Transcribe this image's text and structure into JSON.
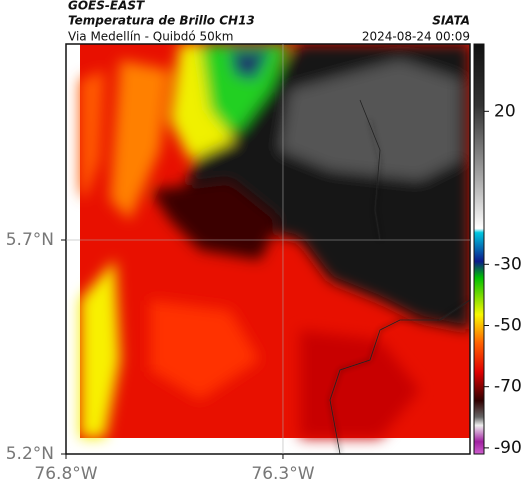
{
  "header": {
    "satellite": "GOES-EAST",
    "product": "Temperatura de Brillo CH13",
    "route": "Via Medellín - Quibdó 50km",
    "source": "SIATA",
    "timestamp": "2024-08-24 00:09"
  },
  "map": {
    "xlim": [
      -76.8,
      -75.869
    ],
    "ylim": [
      5.2,
      6.158
    ],
    "xticks": [
      {
        "value": -76.8,
        "label": "76.8°W"
      },
      {
        "value": -76.3,
        "label": "76.3°W"
      }
    ],
    "yticks": [
      {
        "value": 5.7,
        "label": "5.7°N"
      },
      {
        "value": 5.2,
        "label": "5.2°N"
      }
    ],
    "grid": true
  },
  "colorbar": {
    "lim": [
      42,
      -92
    ],
    "ticks": [
      20,
      -30,
      -50,
      -70,
      -90
    ]
  }
}
